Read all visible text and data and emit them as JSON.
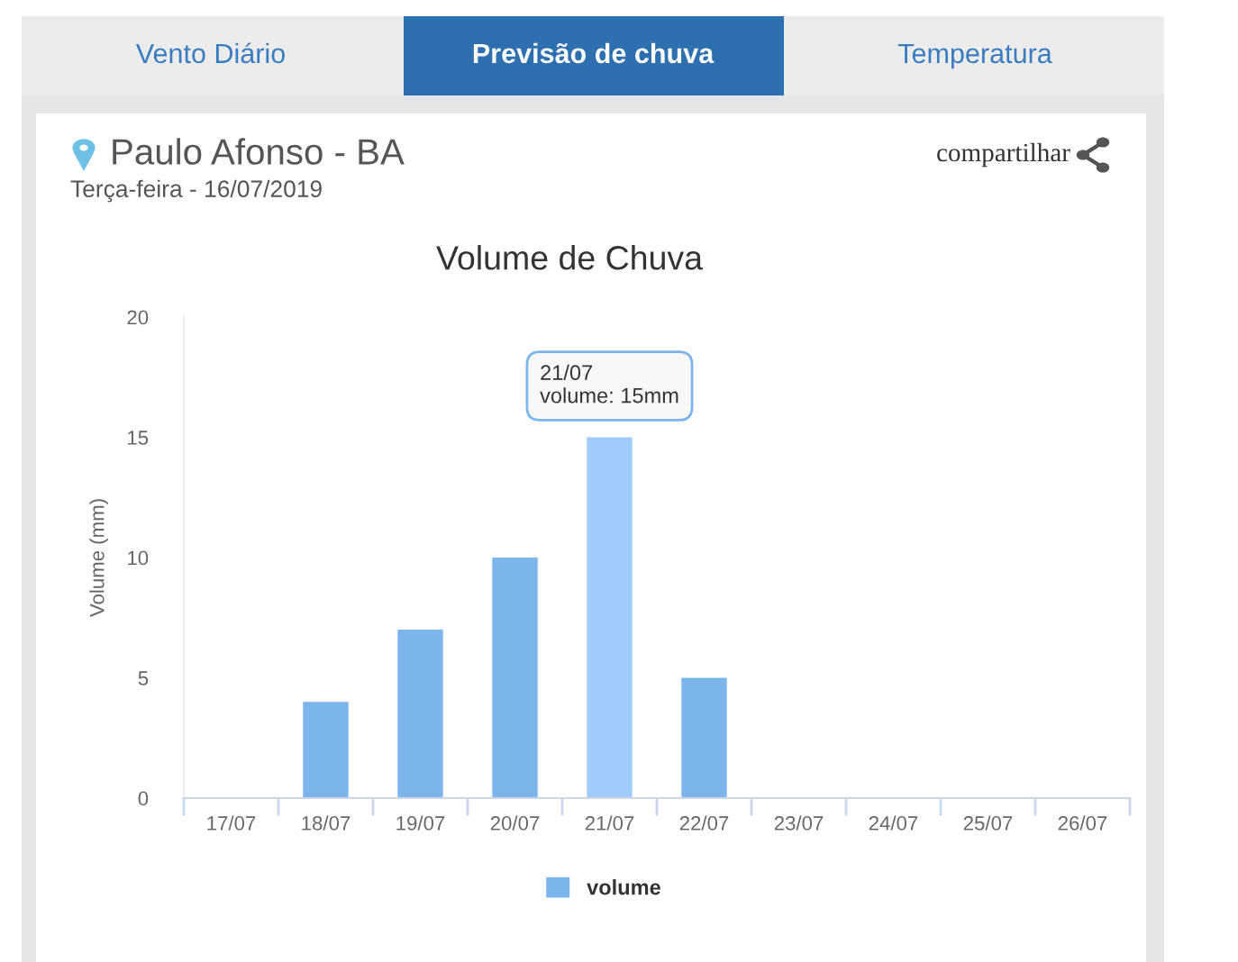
{
  "chart_data": {
    "type": "bar",
    "title": "Volume de Chuva",
    "ylabel": "Volume (mm)",
    "categories": [
      "17/07",
      "18/07",
      "19/07",
      "20/07",
      "21/07",
      "22/07",
      "23/07",
      "24/07",
      "25/07",
      "26/07"
    ],
    "series": [
      {
        "name": "volume",
        "color": "#7cb5ec",
        "colors": [
          "#7cb5ec",
          "#7cb5ec",
          "#7cb5ec",
          "#7cb5ec",
          "#9ecbfa",
          "#7cb5ec",
          "#7cb5ec",
          "#7cb5ec",
          "#7cb5ec",
          "#7cb5ec"
        ],
        "values": [
          0,
          4,
          7,
          10,
          15,
          5,
          0,
          0,
          0,
          0
        ]
      }
    ],
    "ylim": [
      0,
      20
    ],
    "yticks": [
      0,
      5,
      10,
      15,
      20
    ],
    "grid": false,
    "legend": "bottom",
    "annotations": [
      "Vento Diário",
      "Previsão de chuva",
      "Temperatura",
      "Paulo Afonso - BA",
      "Terça-feira - 16/07/2019",
      "compartilhar",
      {
        "text": "21/07\nvolume: 15mm",
        "x": "21/07",
        "y": 15
      }
    ]
  }
}
